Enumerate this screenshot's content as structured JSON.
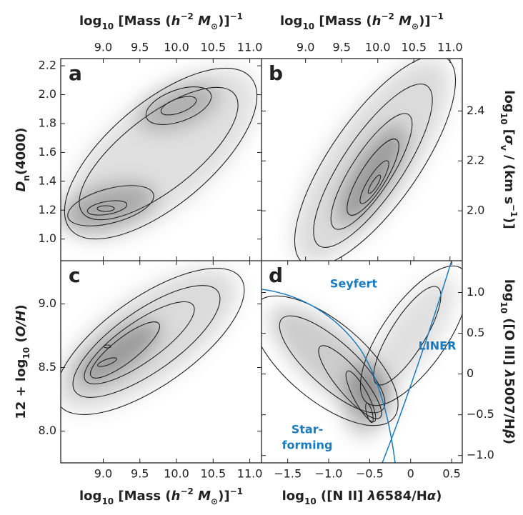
{
  "chart_data": [
    {
      "type": "density",
      "panel": "a",
      "xaxis": "top",
      "yaxis": "left",
      "xlabel": [
        {
          "text": "log",
          "style": "normal"
        },
        {
          "text": "10",
          "style": "sub"
        },
        {
          "text": " [Mass (",
          "style": "normal"
        },
        {
          "text": "h",
          "style": "italic"
        },
        {
          "text": "−2",
          "style": "sup"
        },
        {
          "text": " M",
          "style": "italic"
        },
        {
          "text": "⊙",
          "style": "sub"
        },
        {
          "text": ")]",
          "style": "normal"
        },
        {
          "text": "−1",
          "style": "sup"
        }
      ],
      "ylabel": [
        {
          "text": "D",
          "style": "italic"
        },
        {
          "text": "n",
          "style": "sub"
        },
        {
          "text": "(4000)",
          "style": "normal"
        }
      ],
      "xlim": [
        8.42,
        11.16
      ],
      "xticks": [
        {
          "value": 9,
          "label": "9.0"
        },
        9.5,
        {
          "value": 10,
          "label": "10.0"
        },
        10.5,
        {
          "value": 11,
          "label": "11.0"
        }
      ],
      "ylim": [
        0.85,
        2.25
      ],
      "yticks": [
        {
          "value": 1,
          "label": "1.0"
        },
        1.2,
        1.4,
        1.6,
        1.8,
        {
          "value": 2,
          "label": "2.0"
        },
        2.2
      ]
    },
    {
      "type": "density",
      "panel": "b",
      "xaxis": "top",
      "yaxis": "right",
      "xlabel": [
        {
          "text": "log",
          "style": "normal"
        },
        {
          "text": "10",
          "style": "sub"
        },
        {
          "text": " [Mass (",
          "style": "normal"
        },
        {
          "text": "h",
          "style": "italic"
        },
        {
          "text": "−2",
          "style": "sup"
        },
        {
          "text": " M",
          "style": "italic"
        },
        {
          "text": "⊙",
          "style": "sub"
        },
        {
          "text": ")]",
          "style": "normal"
        },
        {
          "text": "−1",
          "style": "sup"
        }
      ],
      "ylabel": [
        {
          "text": "log",
          "style": "normal"
        },
        {
          "text": "10",
          "style": "sub"
        },
        {
          "text": " [",
          "style": "normal"
        },
        {
          "text": "σ",
          "style": "italic"
        },
        {
          "text": "v",
          "style": "sub"
        },
        {
          "text": " / (km s",
          "style": "normal"
        },
        {
          "text": "−1",
          "style": "sup"
        },
        {
          "text": ")]",
          "style": "normal"
        }
      ],
      "xlim": [
        8.39,
        11.17
      ],
      "xticks": [
        {
          "value": 9,
          "label": "9.0"
        },
        9.5,
        {
          "value": 10,
          "label": "10.0"
        },
        10.5,
        {
          "value": 11,
          "label": "11.0"
        }
      ],
      "ylim": [
        1.8,
        2.61
      ],
      "yticks": [
        {
          "value": 2,
          "label": "2.0"
        },
        2.2,
        2.4
      ]
    },
    {
      "type": "density",
      "panel": "c",
      "xaxis": "bottom",
      "yaxis": "left",
      "xlabel": [
        {
          "text": "log",
          "style": "normal"
        },
        {
          "text": "10",
          "style": "sub"
        },
        {
          "text": " [Mass (",
          "style": "normal"
        },
        {
          "text": "h",
          "style": "italic"
        },
        {
          "text": "−2",
          "style": "sup"
        },
        {
          "text": " M",
          "style": "italic"
        },
        {
          "text": "⊙",
          "style": "sub"
        },
        {
          "text": ")]",
          "style": "normal"
        },
        {
          "text": "−1",
          "style": "sup"
        }
      ],
      "ylabel": [
        {
          "text": "12 + log",
          "style": "normal"
        },
        {
          "text": "10",
          "style": "sub"
        },
        {
          "text": " (",
          "style": "normal"
        },
        {
          "text": "O/H",
          "style": "italic"
        },
        {
          "text": ")",
          "style": "normal"
        }
      ],
      "xlim": [
        8.42,
        11.16
      ],
      "xticks": [
        {
          "value": 9,
          "label": "9.0"
        },
        9.5,
        {
          "value": 10,
          "label": "10.0"
        },
        10.5,
        {
          "value": 11,
          "label": "11.0"
        }
      ],
      "ylim": [
        7.75,
        9.34
      ],
      "yticks": [
        {
          "value": 8,
          "label": "8.0"
        },
        8.5,
        {
          "value": 9,
          "label": "9.0"
        }
      ]
    },
    {
      "type": "density",
      "panel": "d",
      "xaxis": "bottom",
      "yaxis": "right",
      "xlabel": [
        {
          "text": "log",
          "style": "normal"
        },
        {
          "text": "10",
          "style": "sub"
        },
        {
          "text": " ([N II] ",
          "style": "normal"
        },
        {
          "text": "λ",
          "style": "italic"
        },
        {
          "text": "6584/H",
          "style": "normal"
        },
        {
          "text": "α",
          "style": "italic"
        },
        {
          "text": ")",
          "style": "normal"
        }
      ],
      "ylabel": [
        {
          "text": "log",
          "style": "normal"
        },
        {
          "text": "10",
          "style": "sub"
        },
        {
          "text": " ([O III] ",
          "style": "normal"
        },
        {
          "text": "λ",
          "style": "italic"
        },
        {
          "text": "5007/H",
          "style": "normal"
        },
        {
          "text": "β",
          "style": "italic"
        },
        {
          "text": ")",
          "style": "normal"
        }
      ],
      "xlim": [
        -1.82,
        0.63
      ],
      "xticks": [
        {
          "value": -1.5,
          "label": "−1.5"
        },
        {
          "value": -1,
          "label": "−1.0"
        },
        {
          "value": -0.5,
          "label": "−0.5"
        },
        0,
        0.5
      ],
      "ylim": [
        -1.09,
        1.39
      ],
      "yticks": [
        {
          "value": -1,
          "label": "−1.0"
        },
        {
          "value": -0.5,
          "label": "−0.5"
        },
        0,
        0.5,
        {
          "value": 1,
          "label": "1.0"
        }
      ],
      "annotations": [
        "Seyfert",
        "LINER",
        "Star-",
        "forming"
      ],
      "annotation_color": "#1a7bbf"
    }
  ]
}
